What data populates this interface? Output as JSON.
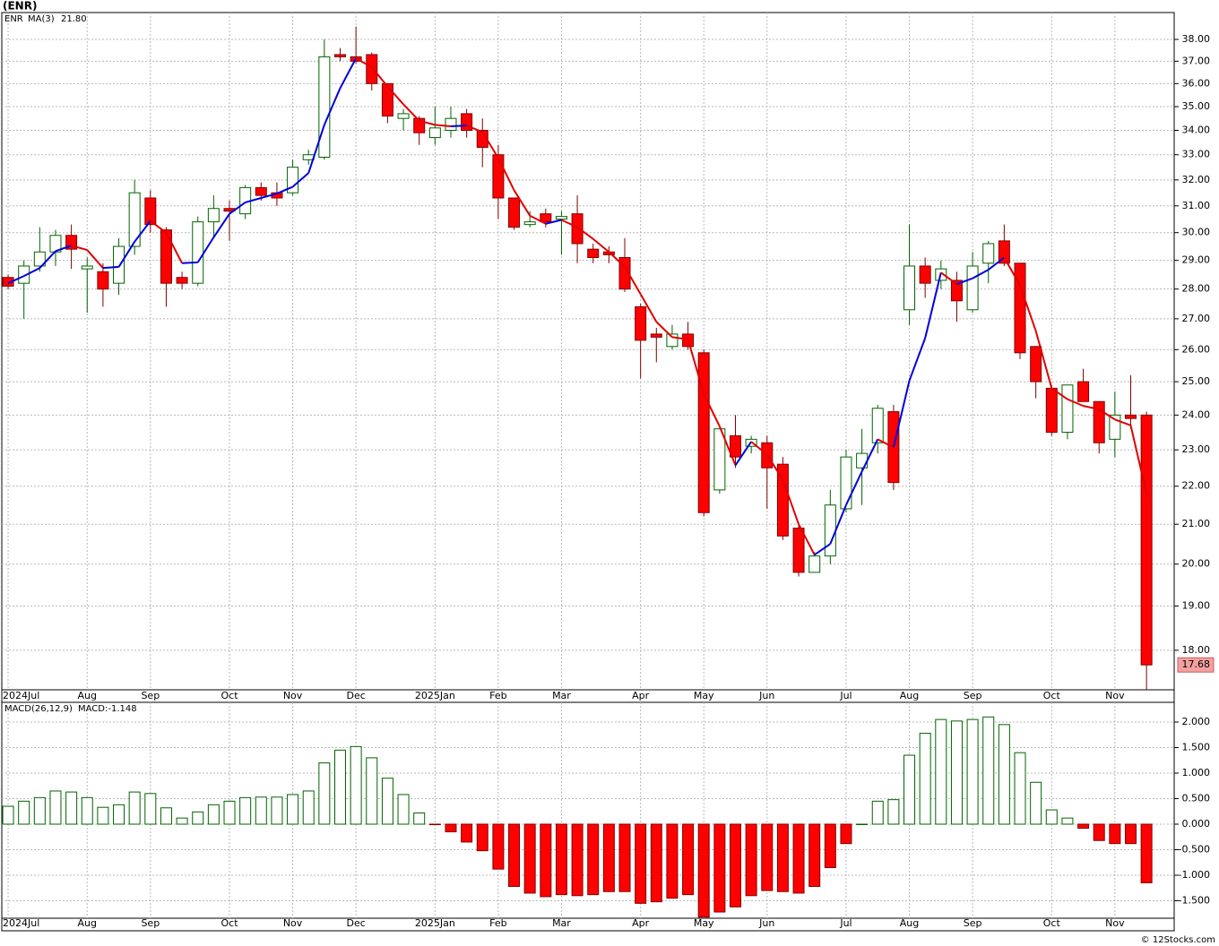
{
  "chart_data": [
    {
      "type": "candlestick",
      "title": "(ENR)",
      "symbol": "ENR",
      "symbol_color": "#008000",
      "log_scale": true,
      "grid": true,
      "up_color": "#ffffff",
      "up_edge": "#006400",
      "down_color": "#ff0000",
      "down_edge": "#800000",
      "xlim": [
        -0.4,
        73.75
      ],
      "xticks": [
        {
          "value": 0,
          "label": "2024Jul"
        },
        {
          "value": 5,
          "label": "Aug"
        },
        {
          "value": 9,
          "label": "Sep"
        },
        {
          "value": 14,
          "label": "Oct"
        },
        {
          "value": 18,
          "label": "Nov"
        },
        {
          "value": 22,
          "label": "Dec"
        },
        {
          "value": 27,
          "label": "2025Jan"
        },
        {
          "value": 31,
          "label": "Feb"
        },
        {
          "value": 35,
          "label": "Mar"
        },
        {
          "value": 40,
          "label": "Apr"
        },
        {
          "value": 44,
          "label": "May"
        },
        {
          "value": 48,
          "label": "Jun"
        },
        {
          "value": 53,
          "label": "Jul"
        },
        {
          "value": 57,
          "label": "Aug"
        },
        {
          "value": 61,
          "label": "Sep"
        },
        {
          "value": 66,
          "label": "Oct"
        },
        {
          "value": 70,
          "label": "Nov"
        }
      ],
      "ylim": [
        17.15,
        39.27
      ],
      "yticks": [
        {
          "value": 18,
          "label": "18.00"
        },
        {
          "value": 19,
          "label": "19.00"
        },
        {
          "value": 20,
          "label": "20.00"
        },
        {
          "value": 21,
          "label": "21.00"
        },
        {
          "value": 22,
          "label": "22.00"
        },
        {
          "value": 23,
          "label": "23.00"
        },
        {
          "value": 24,
          "label": "24.00"
        },
        {
          "value": 25,
          "label": "25.00"
        },
        {
          "value": 26,
          "label": "26.00"
        },
        {
          "value": 27,
          "label": "27.00"
        },
        {
          "value": 28,
          "label": "28.00"
        },
        {
          "value": 29,
          "label": "29.00"
        },
        {
          "value": 30,
          "label": "30.00"
        },
        {
          "value": 31,
          "label": "31.00"
        },
        {
          "value": 32,
          "label": "32.00"
        },
        {
          "value": 33,
          "label": "33.00"
        },
        {
          "value": 34,
          "label": "34.00"
        },
        {
          "value": 35,
          "label": "35.00"
        },
        {
          "value": 36,
          "label": "36.00"
        },
        {
          "value": 37,
          "label": "37.00"
        },
        {
          "value": 38,
          "label": "38.00"
        }
      ],
      "open": [
        28.4,
        28.2,
        28.8,
        29.3,
        29.9,
        28.7,
        28.6,
        28.2,
        29.5,
        31.3,
        30.1,
        28.4,
        28.2,
        30.4,
        30.9,
        30.7,
        31.7,
        31.5,
        31.5,
        32.8,
        32.9,
        37.3,
        37.2,
        37.3,
        36.0,
        34.5,
        34.5,
        33.7,
        34.0,
        34.7,
        34.0,
        33.0,
        31.3,
        30.3,
        30.7,
        30.5,
        30.7,
        29.4,
        29.3,
        29.1,
        27.4,
        26.5,
        26.1,
        26.5,
        25.9,
        21.9,
        23.4,
        23.1,
        23.2,
        22.6,
        20.9,
        19.8,
        20.2,
        21.4,
        22.5,
        23.2,
        24.1,
        27.3,
        28.8,
        28.3,
        28.3,
        27.3,
        28.9,
        29.7,
        28.9,
        26.1,
        24.8,
        23.5,
        25.0,
        24.4,
        23.3,
        24.0,
        24.0
      ],
      "high": [
        28.5,
        29.0,
        30.2,
        30.1,
        30.3,
        29.1,
        28.9,
        29.8,
        32.0,
        31.6,
        30.2,
        28.6,
        30.6,
        31.4,
        31.2,
        31.8,
        31.9,
        31.9,
        32.8,
        33.2,
        38.0,
        37.6,
        38.6,
        37.4,
        36.0,
        34.9,
        34.6,
        35.0,
        35.0,
        34.9,
        34.5,
        33.4,
        31.3,
        30.8,
        30.9,
        30.8,
        31.4,
        29.6,
        29.5,
        29.8,
        27.5,
        26.7,
        26.8,
        26.9,
        26.0,
        23.6,
        24.0,
        23.4,
        23.4,
        22.8,
        21.0,
        20.3,
        21.9,
        23.0,
        23.6,
        24.3,
        24.3,
        30.3,
        29.1,
        29.0,
        28.6,
        29.3,
        29.7,
        30.3,
        28.9,
        26.1,
        24.9,
        24.9,
        25.4,
        24.4,
        24.7,
        25.2,
        24.1
      ],
      "low": [
        28.0,
        27.0,
        28.6,
        28.8,
        28.7,
        27.2,
        27.4,
        27.8,
        29.2,
        30.0,
        27.4,
        28.0,
        28.1,
        29.8,
        29.7,
        30.5,
        31.2,
        31.0,
        31.4,
        32.6,
        32.8,
        37.0,
        36.9,
        35.7,
        34.3,
        34.0,
        33.4,
        33.4,
        33.7,
        33.7,
        32.5,
        30.5,
        30.1,
        30.2,
        30.2,
        29.2,
        28.9,
        28.9,
        28.9,
        27.9,
        25.1,
        25.6,
        26.0,
        26.0,
        21.2,
        21.8,
        22.5,
        22.9,
        21.4,
        20.6,
        19.7,
        19.8,
        20.0,
        21.3,
        21.5,
        22.9,
        21.9,
        26.8,
        27.7,
        28.0,
        26.9,
        27.2,
        28.2,
        28.8,
        25.7,
        24.5,
        23.4,
        23.3,
        24.4,
        22.9,
        22.8,
        23.6,
        17.15
      ],
      "close": [
        28.1,
        28.8,
        29.3,
        29.9,
        29.4,
        28.8,
        28.0,
        29.5,
        31.5,
        30.3,
        28.2,
        28.2,
        30.4,
        30.9,
        30.8,
        31.7,
        31.4,
        31.3,
        32.5,
        33.0,
        37.2,
        37.2,
        37.0,
        36.0,
        34.6,
        34.7,
        33.9,
        34.1,
        34.5,
        34.0,
        33.3,
        31.3,
        30.2,
        30.4,
        30.4,
        30.6,
        29.6,
        29.1,
        29.2,
        28.0,
        26.3,
        26.4,
        26.5,
        26.1,
        21.3,
        23.6,
        22.8,
        23.3,
        22.5,
        20.7,
        19.8,
        20.2,
        21.5,
        22.8,
        22.9,
        24.2,
        22.1,
        28.8,
        28.2,
        28.7,
        27.6,
        28.8,
        29.6,
        28.9,
        25.9,
        25.0,
        23.5,
        24.9,
        24.4,
        23.2,
        24.0,
        23.9,
        17.68
      ],
      "last_label": "17.68",
      "last_label_color": "#f4a0a0",
      "ma": {
        "name": "MA(3)",
        "color": "#0000cc",
        "up_color": "#0000dd",
        "down_color": "#e00000",
        "value_label": "21.80",
        "values": [
          28.2,
          28.45,
          28.73,
          29.33,
          29.53,
          29.37,
          28.73,
          28.77,
          29.67,
          30.43,
          30.0,
          28.9,
          28.93,
          29.83,
          30.7,
          31.13,
          31.3,
          31.47,
          31.73,
          32.27,
          34.23,
          35.8,
          37.13,
          36.73,
          35.87,
          35.1,
          34.4,
          34.23,
          34.17,
          34.2,
          33.93,
          32.87,
          31.6,
          30.63,
          30.33,
          30.47,
          30.2,
          29.77,
          29.3,
          28.77,
          27.83,
          26.9,
          26.4,
          26.33,
          24.63,
          23.67,
          22.57,
          23.23,
          22.87,
          22.17,
          21.0,
          20.23,
          20.5,
          21.5,
          22.4,
          23.3,
          23.07,
          25.03,
          26.37,
          28.57,
          28.17,
          28.37,
          28.67,
          29.1,
          28.13,
          26.6,
          24.8,
          24.47,
          24.27,
          24.17,
          23.87,
          23.7,
          21.8
        ]
      }
    },
    {
      "type": "bar",
      "title": "MACD(26,12,9)",
      "value_label": "MACD:-1.148",
      "label_color": "#0000cc",
      "grid": true,
      "pos_color": "#ffffff",
      "pos_edge": "#006400",
      "neg_color": "#ff0000",
      "neg_edge": "#800000",
      "xlim": [
        -0.4,
        73.75
      ],
      "xticks": [
        {
          "value": 0,
          "label": "2024Jul"
        },
        {
          "value": 5,
          "label": "Aug"
        },
        {
          "value": 9,
          "label": "Sep"
        },
        {
          "value": 14,
          "label": "Oct"
        },
        {
          "value": 18,
          "label": "Nov"
        },
        {
          "value": 22,
          "label": "Dec"
        },
        {
          "value": 27,
          "label": "2025Jan"
        },
        {
          "value": 31,
          "label": "Feb"
        },
        {
          "value": 35,
          "label": "Mar"
        },
        {
          "value": 40,
          "label": "Apr"
        },
        {
          "value": 44,
          "label": "May"
        },
        {
          "value": 48,
          "label": "Jun"
        },
        {
          "value": 53,
          "label": "Jul"
        },
        {
          "value": 57,
          "label": "Aug"
        },
        {
          "value": 61,
          "label": "Sep"
        },
        {
          "value": 66,
          "label": "Oct"
        },
        {
          "value": 70,
          "label": "Nov"
        }
      ],
      "ylim": [
        -1.842,
        2.386
      ],
      "yticks": [
        {
          "value": -1.5,
          "label": "-1.500"
        },
        {
          "value": -1,
          "label": "-1.000"
        },
        {
          "value": -0.5,
          "label": "-0.500"
        },
        {
          "value": 0,
          "label": "0.000"
        },
        {
          "value": 0.5,
          "label": "0.500"
        },
        {
          "value": 1,
          "label": "1.000"
        },
        {
          "value": 1.5,
          "label": "1.500"
        },
        {
          "value": 2,
          "label": "2.000"
        }
      ],
      "values": [
        0.35,
        0.45,
        0.52,
        0.65,
        0.63,
        0.52,
        0.33,
        0.38,
        0.63,
        0.6,
        0.32,
        0.12,
        0.24,
        0.38,
        0.45,
        0.52,
        0.53,
        0.53,
        0.58,
        0.65,
        1.2,
        1.45,
        1.52,
        1.3,
        0.9,
        0.58,
        0.22,
        -0.01,
        -0.15,
        -0.35,
        -0.52,
        -0.88,
        -1.22,
        -1.35,
        -1.42,
        -1.38,
        -1.4,
        -1.38,
        -1.32,
        -1.32,
        -1.55,
        -1.52,
        -1.45,
        -1.38,
        -1.82,
        -1.72,
        -1.62,
        -1.4,
        -1.3,
        -1.32,
        -1.35,
        -1.22,
        -0.85,
        -0.38,
        0.0,
        0.45,
        0.48,
        1.35,
        1.78,
        2.05,
        2.02,
        2.05,
        2.1,
        1.95,
        1.4,
        0.82,
        0.28,
        0.12,
        -0.08,
        -0.32,
        -0.38,
        -0.38,
        -1.148
      ]
    }
  ],
  "footer": "© 12Stocks.com"
}
